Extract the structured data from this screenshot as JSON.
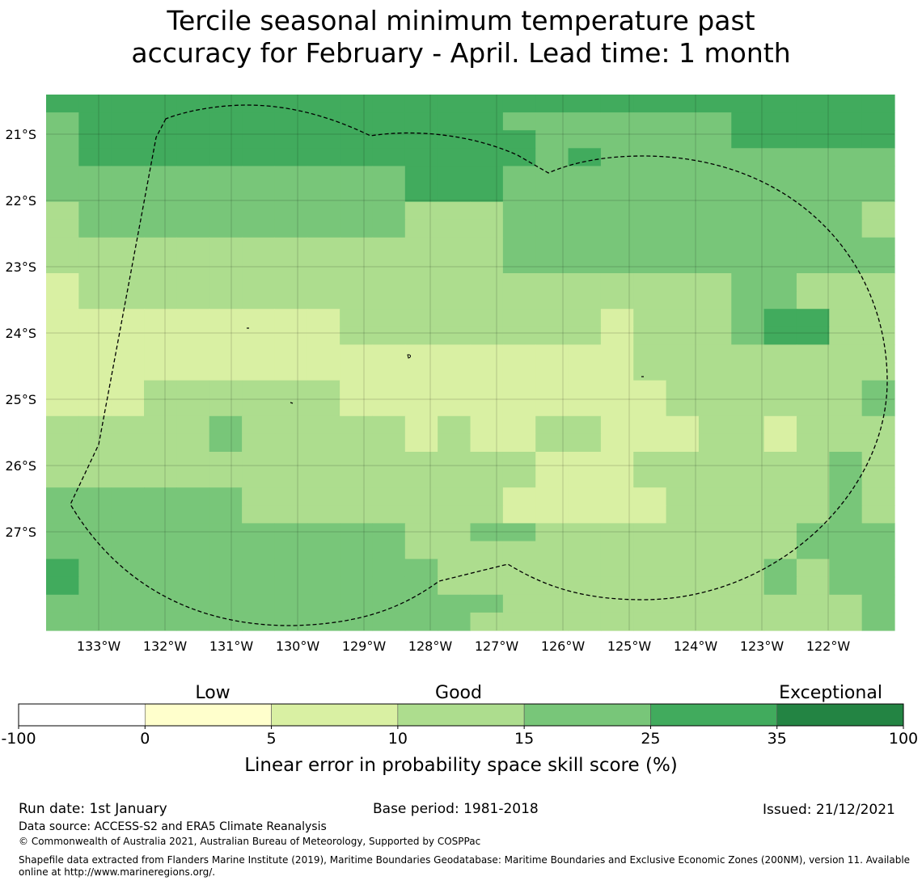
{
  "title": {
    "line1": "Tercile seasonal minimum temperature past",
    "line2": "accuracy for February - April. Lead time: 1 month"
  },
  "map": {
    "lon_range": [
      -133.8,
      -121.0
    ],
    "lat_range": [
      -28.2,
      -20.4
    ],
    "lon_ticks": [
      "133°W",
      "132°W",
      "131°W",
      "130°W",
      "129°W",
      "128°W",
      "127°W",
      "126°W",
      "125°W",
      "124°W",
      "123°W",
      "122°W"
    ],
    "lat_ticks": [
      "21°S",
      "22°S",
      "23°S",
      "24°S",
      "25°S",
      "26°S",
      "27°S"
    ],
    "grid_lines": true,
    "category_colors": {
      "0": "#ffffcc",
      "1": "#d9f0a3",
      "2": "#addd8e",
      "3": "#78c679",
      "4": "#41ab5d",
      "5": "#238443"
    },
    "cell_categories": [
      "44444444444444444444444444",
      "34444444444444333333344444",
      "34444444444444433333344444",
      "34444444444444434333333333",
      "33333333333444333333333333",
      "33333333333444333333333333",
      "23333333333222333333333332",
      "23333333333222333333333332",
      "22222222222222333333333333",
      "22222222222222333333333333",
      "12222222222222222222233222",
      "12222222222222222222233222",
      "11111111122222222122234422",
      "11111111122222222122234422",
      "11111111111111111122222222",
      "11111111111111111122222222",
      "11122222211111111112222223",
      "11122222211111111112222223",
      "22222322222121122111221222",
      "22222322222121122111221222",
      "22222222222222211122222232",
      "22222222222222211122222232",
      "33333322222222111112222232",
      "33333322222222111112222232",
      "33333333333223322222222333",
      "33333333333222222222222333",
      "43333333333322222222223233",
      "43333333333322222222223233",
      "33333333333333222222222223",
      "33333333333332222222222223"
    ],
    "eez_boundary": "dashed"
  },
  "colorbar": {
    "headers": [
      "Low",
      "Good",
      "Exceptional"
    ],
    "ticks": [
      "-100",
      "0",
      "5",
      "10",
      "15",
      "25",
      "35",
      "100"
    ],
    "colors": [
      "#ffffff",
      "#ffffcc",
      "#d9f0a3",
      "#addd8e",
      "#78c679",
      "#41ab5d",
      "#238443"
    ],
    "label": "Linear error in probability space skill score (%)"
  },
  "footer": {
    "run_date": "Run date: 1st January",
    "base_period": "Base period: 1981-2018",
    "issued": "Issued: 21/12/2021",
    "data_source": "Data source: ACCESS-S2 and ERA5 Climate Reanalysis",
    "copyright": "© Commonwealth of Australia 2021, Australian Bureau of Meteorology, Supported by COSPPac",
    "shapefile_line1": "Shapefile data extracted from Flanders Marine Institute (2019), Maritime Boundaries Geodatabase: Maritime Boundaries and Exclusive Economic Zones (200NM), version 11. Available",
    "shapefile_line2": "online at http://www.marineregions.org/."
  }
}
